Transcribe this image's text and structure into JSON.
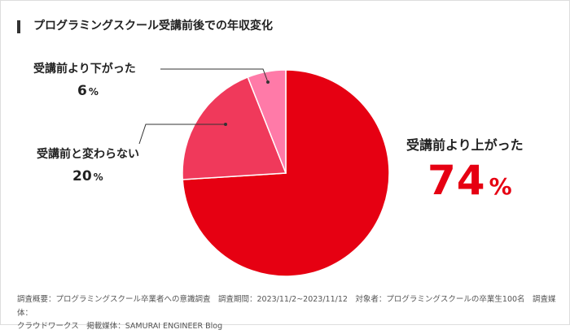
{
  "title": "プログラミングスクール受講前後での年収変化",
  "colors": {
    "accent": "#e60012",
    "slice_up": "#e60012",
    "slice_same": "#f0395b",
    "slice_down": "#ff7aa8"
  },
  "chart_data": {
    "type": "pie",
    "title": "プログラミングスクール受講前後での年収変化",
    "unit": "%",
    "start_angle_deg": 0,
    "direction": "clockwise",
    "slices": [
      {
        "label": "受講前より上がった",
        "value": 74
      },
      {
        "label": "受講前と変わらない",
        "value": 20
      },
      {
        "label": "受講前より下がった",
        "value": 6
      }
    ]
  },
  "labels": {
    "up": {
      "text": "受講前より上がった",
      "value": "74",
      "unit": "%"
    },
    "same": {
      "text": "受講前と変わらない",
      "value": "20",
      "unit": "%"
    },
    "down": {
      "text": "受講前より下がった",
      "value": "6",
      "unit": "%"
    }
  },
  "footer": {
    "line1": "調査概要：プログラミングスクール卒業者への意識調査　調査期間：2023/11/2~2023/11/12　対象者：プログラミングスクールの卒業生100名　調査媒体：",
    "line2": "クラウドワークス　掲載媒体：SAMURAI ENGINEER Blog"
  }
}
